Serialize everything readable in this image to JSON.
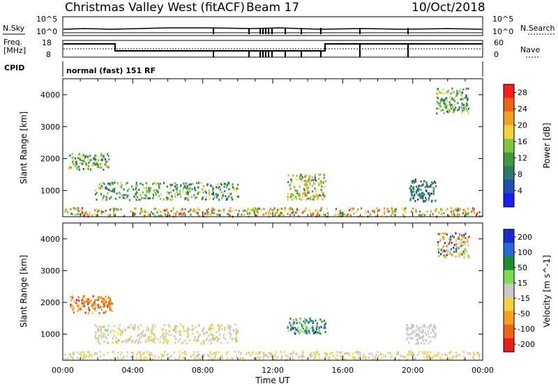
{
  "header": {
    "site": "Christmas Valley West (fitACF)",
    "beam": "Beam 17",
    "date": "10/Oct/2018"
  },
  "status_panels": {
    "nsky_label": "N.Sky",
    "nsearch_label": "N.Search",
    "nsky_ticks": [
      "10^5",
      "10^0"
    ],
    "nsearch_ticks": [
      "10^5",
      "10^0"
    ],
    "freq_label_line1": "Freq.",
    "freq_label_line2": "[MHz]",
    "freq_ticks": [
      "18",
      "8"
    ],
    "nave_label": "Nave",
    "nave_ticks": [
      "60",
      "0"
    ],
    "cpid_label": "CPID",
    "cpid_text": "normal (fast) 151 RF"
  },
  "colors": {
    "power": [
      "#1a1aff",
      "#1f4fb0",
      "#2a7a6a",
      "#3f9a3f",
      "#7fc640",
      "#f4d23a",
      "#f2a11f",
      "#ef6512",
      "#ff1a1a"
    ],
    "velocity": [
      "#1a2bd6",
      "#2a6ad8",
      "#1d8e2c",
      "#7ddc54",
      "#c9c9c9",
      "#f5d23c",
      "#f7a11d",
      "#ee6614",
      "#ee1b1b"
    ]
  },
  "chart_data": [
    {
      "type": "heatmap",
      "panel": "power",
      "xlabel": "",
      "ylabel": "Slant Range [km]",
      "xlim_hours": [
        0,
        24
      ],
      "ylim_km": [
        180,
        4500
      ],
      "yticks": [
        1000,
        2000,
        3000,
        4000
      ],
      "colorbar": {
        "label": "Power [dB]",
        "range": [
          0,
          30
        ],
        "ticks": [
          4,
          8,
          12,
          16,
          20,
          24,
          28
        ]
      },
      "regions": [
        {
          "t0": 0.3,
          "t1": 2.6,
          "r0": 1650,
          "r1": 2150,
          "vmin": 6,
          "vmax": 20
        },
        {
          "t0": 1.8,
          "t1": 10.0,
          "r0": 700,
          "r1": 1250,
          "vmin": 6,
          "vmax": 18
        },
        {
          "t0": 0.0,
          "t1": 24.0,
          "r0": 180,
          "r1": 450,
          "vmin": 10,
          "vmax": 28
        },
        {
          "t0": 12.8,
          "t1": 15.0,
          "r0": 700,
          "r1": 1500,
          "vmin": 8,
          "vmax": 24
        },
        {
          "t0": 19.8,
          "t1": 21.3,
          "r0": 650,
          "r1": 1350,
          "vmin": 4,
          "vmax": 14
        },
        {
          "t0": 21.3,
          "t1": 23.2,
          "r0": 3400,
          "r1": 4200,
          "vmin": 6,
          "vmax": 20
        }
      ]
    },
    {
      "type": "heatmap",
      "panel": "velocity",
      "xlabel": "Time UT",
      "ylabel": "Slant Range [km]",
      "xlim_hours": [
        0,
        24
      ],
      "ylim_km": [
        180,
        4500
      ],
      "xticks": [
        "00:00",
        "04:00",
        "08:00",
        "12:00",
        "16:00",
        "20:00",
        "00:00"
      ],
      "yticks": [
        1000,
        2000,
        3000,
        4000
      ],
      "colorbar": {
        "label": "Velocity [m s^-1]",
        "range": [
          -250,
          250
        ],
        "ticks": [
          200,
          100,
          50,
          15,
          -15,
          -50,
          -100,
          -200
        ]
      },
      "regions": [
        {
          "t0": 0.4,
          "t1": 2.8,
          "r0": 1650,
          "r1": 2200,
          "vmin": -220,
          "vmax": -60
        },
        {
          "t0": 1.8,
          "t1": 10.0,
          "r0": 700,
          "r1": 1300,
          "vmin": -60,
          "vmax": 30
        },
        {
          "t0": 0.0,
          "t1": 24.0,
          "r0": 180,
          "r1": 450,
          "vmin": -60,
          "vmax": 10
        },
        {
          "t0": 12.8,
          "t1": 15.0,
          "r0": 1000,
          "r1": 1500,
          "vmin": 30,
          "vmax": 220
        },
        {
          "t0": 19.6,
          "t1": 21.3,
          "r0": 700,
          "r1": 1300,
          "vmin": -20,
          "vmax": 20
        },
        {
          "t0": 21.4,
          "t1": 23.2,
          "r0": 3400,
          "r1": 4200,
          "vmin": -220,
          "vmax": 220
        }
      ]
    }
  ]
}
